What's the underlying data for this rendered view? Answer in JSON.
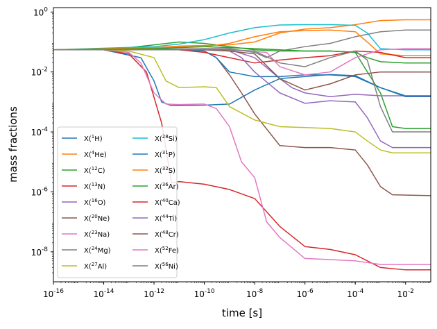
{
  "chart_data": {
    "type": "line",
    "title": "",
    "xlabel": "time [s]",
    "ylabel": "mass fractions",
    "xscale": "log",
    "yscale": "log",
    "xlim": [
      1e-16,
      0.1
    ],
    "ylim": [
      1e-09,
      1.4
    ],
    "grid": false,
    "legend_placement": "lower-left",
    "legend_columns": 2,
    "x_ticks": [
      {
        "exp": "-16"
      },
      {
        "exp": "-14"
      },
      {
        "exp": "-12"
      },
      {
        "exp": "-10"
      },
      {
        "exp": "-8"
      },
      {
        "exp": "-6"
      },
      {
        "exp": "-4"
      },
      {
        "exp": "-2"
      }
    ],
    "y_ticks": [
      {
        "exp": "-8"
      },
      {
        "exp": "-6"
      },
      {
        "exp": "-4"
      },
      {
        "exp": "-2"
      },
      {
        "exp": "0"
      }
    ],
    "series": [
      {
        "name": "X(¹H)",
        "mass": "1",
        "sym": "H",
        "color": "#1f77b4",
        "points": [
          [
            1e-16,
            0.055
          ],
          [
            1e-14,
            0.055
          ],
          [
            3e-13,
            0.03
          ],
          [
            1e-12,
            0.005
          ],
          [
            2e-12,
            0.001
          ],
          [
            5e-12,
            0.00075
          ],
          [
            1e-10,
            0.00078
          ],
          [
            1e-09,
            0.00085
          ],
          [
            1e-08,
            0.0025
          ],
          [
            1e-07,
            0.006
          ],
          [
            1e-05,
            0.0082
          ],
          [
            0.0001,
            0.0075
          ],
          [
            0.001,
            0.003
          ],
          [
            0.01,
            0.0016
          ],
          [
            0.1,
            0.0016
          ]
        ]
      },
      {
        "name": "X(⁴He)",
        "mass": "4",
        "sym": "He",
        "color": "#ff7f0e",
        "points": [
          [
            1e-16,
            0.055
          ],
          [
            1e-14,
            0.057
          ],
          [
            1e-12,
            0.065
          ],
          [
            1e-11,
            0.073
          ],
          [
            1e-09,
            0.08
          ],
          [
            1e-08,
            0.1
          ],
          [
            1e-07,
            0.2
          ],
          [
            1e-06,
            0.27
          ],
          [
            1e-05,
            0.3
          ],
          [
            0.0001,
            0.38
          ],
          [
            0.001,
            0.52
          ],
          [
            0.01,
            0.55
          ],
          [
            0.1,
            0.55
          ]
        ]
      },
      {
        "name": "X(¹²C)",
        "mass": "12",
        "sym": "C",
        "color": "#2ca02c",
        "points": [
          [
            1e-16,
            0.055
          ],
          [
            1e-14,
            0.058
          ],
          [
            1e-13,
            0.065
          ],
          [
            1e-12,
            0.08
          ],
          [
            1e-11,
            0.1
          ],
          [
            1e-10,
            0.09
          ],
          [
            1e-09,
            0.07
          ],
          [
            1e-08,
            0.055
          ],
          [
            1e-07,
            0.05
          ],
          [
            1e-06,
            0.05
          ],
          [
            1e-05,
            0.05
          ],
          [
            0.0001,
            0.045
          ],
          [
            0.001,
            0.002
          ],
          [
            0.003,
            0.00015
          ],
          [
            0.01,
            0.00013
          ],
          [
            0.1,
            0.00013
          ]
        ]
      },
      {
        "name": "X(¹³N)",
        "mass": "13",
        "sym": "N",
        "color": "#d62728",
        "points": [
          [
            1e-16,
            0.055
          ],
          [
            1e-14,
            0.055
          ],
          [
            1e-13,
            0.04
          ],
          [
            5e-13,
            0.01
          ],
          [
            2e-12,
            0.0002
          ],
          [
            5e-12,
            2e-06
          ],
          [
            1e-11,
            2.2e-06
          ],
          [
            1e-10,
            1.8e-06
          ],
          [
            1e-09,
            1.2e-06
          ],
          [
            1e-08,
            6e-07
          ],
          [
            1e-07,
            7e-08
          ],
          [
            1e-06,
            1.5e-08
          ],
          [
            1e-05,
            1.2e-08
          ],
          [
            0.0001,
            8e-09
          ],
          [
            0.001,
            3e-09
          ],
          [
            0.01,
            2.5e-09
          ],
          [
            0.1,
            2.5e-09
          ]
        ]
      },
      {
        "name": "X(¹⁶O)",
        "mass": "16",
        "sym": "O",
        "color": "#9467bd",
        "points": [
          [
            1e-16,
            0.055
          ],
          [
            1e-12,
            0.056
          ],
          [
            1e-10,
            0.06
          ],
          [
            1e-09,
            0.055
          ],
          [
            1e-08,
            0.03
          ],
          [
            1e-07,
            0.006
          ],
          [
            3e-07,
            0.003
          ],
          [
            1e-06,
            0.002
          ],
          [
            1e-05,
            0.0015
          ],
          [
            0.0001,
            0.0018
          ],
          [
            0.0003,
            0.0017
          ],
          [
            0.001,
            0.0016
          ],
          [
            0.1,
            0.0016
          ]
        ]
      },
      {
        "name": "X(²⁰Ne)",
        "mass": "20",
        "sym": "Ne",
        "color": "#8c564b",
        "points": [
          [
            1e-16,
            0.055
          ],
          [
            1e-11,
            0.055
          ],
          [
            1e-10,
            0.05
          ],
          [
            3e-10,
            0.03
          ],
          [
            1e-09,
            0.008
          ],
          [
            3e-09,
            0.002
          ],
          [
            1e-08,
            0.0004
          ],
          [
            1e-07,
            3.5e-05
          ],
          [
            1e-06,
            3e-05
          ],
          [
            1e-05,
            3e-05
          ],
          [
            0.0001,
            2.5e-05
          ],
          [
            0.0003,
            8e-06
          ],
          [
            0.001,
            1.5e-06
          ],
          [
            0.003,
            8e-07
          ],
          [
            0.1,
            7.5e-07
          ]
        ]
      },
      {
        "name": "X(²³Na)",
        "mass": "23",
        "sym": "Na",
        "color": "#e377c2",
        "points": [
          [
            1e-16,
            0.055
          ],
          [
            1e-14,
            0.055
          ],
          [
            1e-13,
            0.045
          ],
          [
            3e-13,
            0.02
          ],
          [
            1e-12,
            0.002
          ],
          [
            3e-12,
            0.00085
          ],
          [
            1e-11,
            0.00082
          ],
          [
            1e-10,
            0.00085
          ],
          [
            3e-10,
            0.0006
          ],
          [
            1e-09,
            0.00015
          ],
          [
            3e-09,
            1e-05
          ],
          [
            1e-08,
            3e-06
          ],
          [
            3e-08,
            1e-07
          ],
          [
            1e-07,
            3e-08
          ],
          [
            1e-06,
            6e-09
          ],
          [
            1e-05,
            5.5e-09
          ],
          [
            0.0001,
            5e-09
          ],
          [
            0.001,
            3.8e-09
          ],
          [
            0.01,
            3.8e-09
          ],
          [
            0.1,
            3.8e-09
          ]
        ]
      },
      {
        "name": "X(²⁴Mg)",
        "mass": "24",
        "sym": "Mg",
        "color": "#7f7f7f",
        "points": [
          [
            1e-16,
            0.055
          ],
          [
            1e-12,
            0.057
          ],
          [
            1e-10,
            0.06
          ],
          [
            1e-09,
            0.06
          ],
          [
            1e-08,
            0.045
          ],
          [
            3e-08,
            0.03
          ],
          [
            1e-07,
            0.05
          ],
          [
            1e-06,
            0.07
          ],
          [
            1e-05,
            0.09
          ],
          [
            0.0001,
            0.15
          ],
          [
            0.001,
            0.22
          ],
          [
            0.01,
            0.25
          ],
          [
            0.1,
            0.25
          ]
        ]
      },
      {
        "name": "X(²⁷Al)",
        "mass": "27",
        "sym": "Al",
        "color": "#bcbd22",
        "points": [
          [
            1e-16,
            0.055
          ],
          [
            1e-14,
            0.055
          ],
          [
            1e-13,
            0.05
          ],
          [
            1e-12,
            0.03
          ],
          [
            3e-12,
            0.005
          ],
          [
            1e-11,
            0.003
          ],
          [
            1e-10,
            0.0032
          ],
          [
            3e-10,
            0.003
          ],
          [
            1e-09,
            0.0007
          ],
          [
            1e-08,
            0.00025
          ],
          [
            1e-07,
            0.00015
          ],
          [
            1e-06,
            0.00014
          ],
          [
            1e-05,
            0.00013
          ],
          [
            0.0001,
            0.0001
          ],
          [
            0.0003,
            5e-05
          ],
          [
            0.001,
            2.5e-05
          ],
          [
            0.003,
            2e-05
          ],
          [
            0.1,
            2e-05
          ]
        ]
      },
      {
        "name": "X(²⁸Si)",
        "mass": "28",
        "sym": "Si",
        "color": "#17becf",
        "points": [
          [
            1e-16,
            0.055
          ],
          [
            1e-12,
            0.07
          ],
          [
            1e-11,
            0.085
          ],
          [
            1e-10,
            0.12
          ],
          [
            1e-09,
            0.2
          ],
          [
            1e-08,
            0.3
          ],
          [
            1e-07,
            0.37
          ],
          [
            1e-06,
            0.38
          ],
          [
            1e-05,
            0.38
          ],
          [
            0.0001,
            0.36
          ],
          [
            0.0003,
            0.2
          ],
          [
            0.001,
            0.06
          ],
          [
            0.01,
            0.055
          ],
          [
            0.1,
            0.055
          ]
        ]
      },
      {
        "name": "X(³¹P)",
        "mass": "31",
        "sym": "P",
        "color": "#1f77b4",
        "points": [
          [
            1e-16,
            0.055
          ],
          [
            1e-11,
            0.055
          ],
          [
            1e-10,
            0.05
          ],
          [
            3e-10,
            0.03
          ],
          [
            1e-09,
            0.01
          ],
          [
            1e-08,
            0.007
          ],
          [
            1e-07,
            0.007
          ],
          [
            1e-06,
            0.008
          ],
          [
            1e-05,
            0.008
          ],
          [
            0.0001,
            0.007
          ],
          [
            0.001,
            0.003
          ],
          [
            0.01,
            0.0015
          ],
          [
            0.1,
            0.0015
          ]
        ]
      },
      {
        "name": "X(³²S)",
        "mass": "32",
        "sym": "S",
        "color": "#ff7f0e",
        "points": [
          [
            1e-16,
            0.055
          ],
          [
            1e-12,
            0.065
          ],
          [
            1e-10,
            0.07
          ],
          [
            1e-09,
            0.09
          ],
          [
            1e-08,
            0.15
          ],
          [
            1e-07,
            0.22
          ],
          [
            1e-06,
            0.24
          ],
          [
            1e-05,
            0.25
          ],
          [
            0.0001,
            0.22
          ],
          [
            0.0003,
            0.1
          ],
          [
            0.001,
            0.04
          ],
          [
            0.01,
            0.035
          ],
          [
            0.1,
            0.035
          ]
        ]
      },
      {
        "name": "X(³⁶Ar)",
        "mass": "36",
        "sym": "Ar",
        "color": "#2ca02c",
        "points": [
          [
            1e-16,
            0.055
          ],
          [
            1e-12,
            0.06
          ],
          [
            1e-11,
            0.065
          ],
          [
            1e-10,
            0.07
          ],
          [
            1e-09,
            0.065
          ],
          [
            1e-08,
            0.06
          ],
          [
            1e-07,
            0.055
          ],
          [
            1e-06,
            0.05
          ],
          [
            1e-05,
            0.05
          ],
          [
            0.0001,
            0.045
          ],
          [
            0.0003,
            0.03
          ],
          [
            0.001,
            0.022
          ],
          [
            0.01,
            0.02
          ],
          [
            0.1,
            0.02
          ]
        ]
      },
      {
        "name": "X(⁴⁰Ca)",
        "mass": "40",
        "sym": "Ca",
        "color": "#d62728",
        "points": [
          [
            1e-16,
            0.055
          ],
          [
            1e-11,
            0.055
          ],
          [
            1e-10,
            0.045
          ],
          [
            1e-09,
            0.03
          ],
          [
            1e-08,
            0.02
          ],
          [
            1e-07,
            0.025
          ],
          [
            1e-06,
            0.03
          ],
          [
            1e-05,
            0.035
          ],
          [
            0.0001,
            0.05
          ],
          [
            0.001,
            0.045
          ],
          [
            0.01,
            0.03
          ],
          [
            0.1,
            0.03
          ]
        ]
      },
      {
        "name": "X(⁴⁴Ti)",
        "mass": "44",
        "sym": "Ti",
        "color": "#9467bd",
        "points": [
          [
            1e-16,
            0.055
          ],
          [
            1e-10,
            0.055
          ],
          [
            1e-09,
            0.05
          ],
          [
            3e-09,
            0.03
          ],
          [
            1e-08,
            0.01
          ],
          [
            1e-07,
            0.002
          ],
          [
            1e-06,
            0.0009
          ],
          [
            1e-05,
            0.0011
          ],
          [
            0.0001,
            0.001
          ],
          [
            0.0003,
            0.0003
          ],
          [
            0.001,
            5e-05
          ],
          [
            0.003,
            3e-05
          ],
          [
            0.1,
            3e-05
          ]
        ]
      },
      {
        "name": "X(⁴⁸Cr)",
        "mass": "48",
        "sym": "Cr",
        "color": "#8c564b",
        "points": [
          [
            1e-16,
            0.055
          ],
          [
            1e-10,
            0.055
          ],
          [
            1e-09,
            0.05
          ],
          [
            1e-08,
            0.04
          ],
          [
            1e-07,
            0.006
          ],
          [
            1e-06,
            0.0025
          ],
          [
            1e-05,
            0.004
          ],
          [
            0.0001,
            0.008
          ],
          [
            0.001,
            0.01
          ],
          [
            0.01,
            0.01
          ],
          [
            0.1,
            0.01
          ]
        ]
      },
      {
        "name": "X(⁵²Fe)",
        "mass": "52",
        "sym": "Fe",
        "color": "#e377c2",
        "points": [
          [
            1e-16,
            0.055
          ],
          [
            1e-10,
            0.055
          ],
          [
            1e-09,
            0.055
          ],
          [
            3e-08,
            0.045
          ],
          [
            1e-07,
            0.015
          ],
          [
            1e-06,
            0.008
          ],
          [
            1e-05,
            0.01
          ],
          [
            0.0001,
            0.03
          ],
          [
            0.001,
            0.055
          ],
          [
            0.01,
            0.06
          ],
          [
            0.1,
            0.06
          ]
        ]
      },
      {
        "name": "X(⁵⁶Ni)",
        "mass": "56",
        "sym": "Ni",
        "color": "#7f7f7f",
        "points": [
          [
            1e-16,
            0.055
          ],
          [
            1e-10,
            0.055
          ],
          [
            1e-09,
            0.055
          ],
          [
            1e-08,
            0.05
          ],
          [
            1e-07,
            0.02
          ],
          [
            1e-06,
            0.015
          ],
          [
            1e-05,
            0.03
          ],
          [
            0.0001,
            0.05
          ],
          [
            0.0003,
            0.025
          ],
          [
            0.001,
            0.0007
          ],
          [
            0.003,
            0.0001
          ],
          [
            0.01,
            0.0001
          ],
          [
            0.1,
            0.0001
          ]
        ]
      }
    ]
  }
}
